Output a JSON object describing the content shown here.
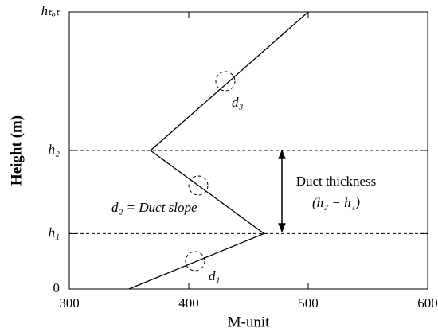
{
  "chart_data": {
    "type": "line",
    "x_label": "M-unit",
    "y_label": "Height (m)",
    "x": [
      350,
      463,
      368,
      500
    ],
    "values": [
      0,
      0.2,
      0.5,
      1
    ],
    "color": "#000000",
    "xlim": [
      300,
      600
    ],
    "xticks": [
      300,
      400,
      500,
      600
    ],
    "ylim": [
      0,
      1
    ],
    "yticks": [
      0,
      {
        "value": 0.2,
        "label": "h₁"
      },
      {
        "value": 0.5,
        "label": "h₂"
      },
      {
        "value": 1,
        "label": "hₜₒₜ"
      }
    ],
    "annotations": {
      "d1": "d₁",
      "d2": "d₂ = Duct slope",
      "d3": "d₃",
      "thickness": "Duct thickness",
      "thickness_formula": "(h₂ − h₁)"
    }
  }
}
